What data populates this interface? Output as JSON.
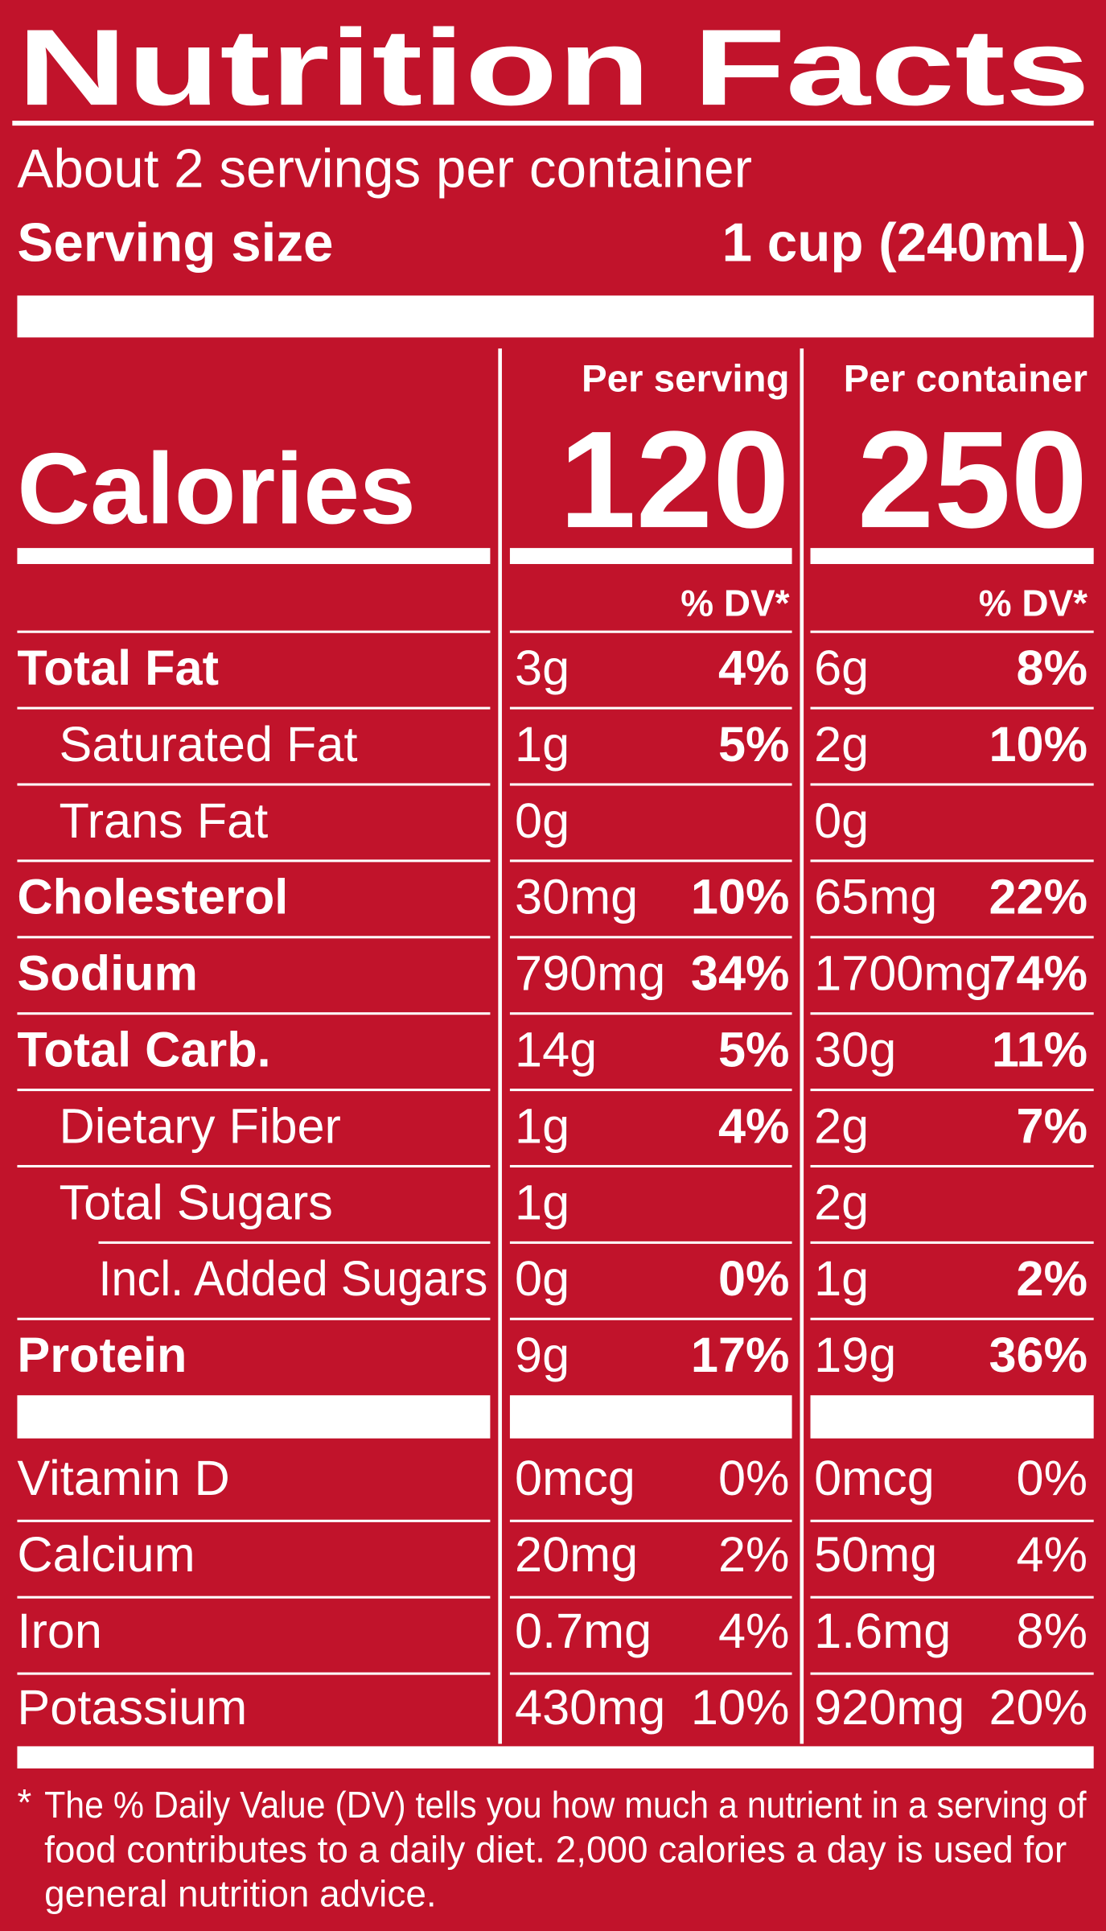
{
  "header": {
    "title": "Nutrition Facts",
    "servings": "About 2 servings per container",
    "serving_size_label": "Serving size",
    "serving_size_value": "1 cup (240mL)"
  },
  "calories": {
    "label": "Calories",
    "columns": [
      {
        "heading": "Per serving",
        "value": "120",
        "dv_heading": "% DV*"
      },
      {
        "heading": "Per container",
        "value": "250",
        "dv_heading": "% DV*"
      }
    ]
  },
  "nutrients": [
    {
      "name": "Total Fat",
      "bold": true,
      "indent": 0,
      "serving": [
        "3g",
        "4%"
      ],
      "container": [
        "6g",
        "8%"
      ]
    },
    {
      "name": "Saturated Fat",
      "bold": false,
      "indent": 1,
      "serving": [
        "1g",
        "5%"
      ],
      "container": [
        "2g",
        "10%"
      ]
    },
    {
      "name": "Trans Fat",
      "bold": false,
      "indent": 1,
      "serving": [
        "0g"
      ],
      "container": [
        "0g"
      ]
    },
    {
      "name": "Cholesterol",
      "bold": true,
      "indent": 0,
      "serving": [
        "30mg",
        "10%"
      ],
      "container": [
        "65mg",
        "22%"
      ]
    },
    {
      "name": "Sodium",
      "bold": true,
      "indent": 0,
      "serving": [
        "790mg",
        "34%"
      ],
      "container": [
        "1700mg",
        "74%"
      ]
    },
    {
      "name": "Total Carb.",
      "bold": true,
      "indent": 0,
      "serving": [
        "14g",
        "5%"
      ],
      "container": [
        "30g",
        "11%"
      ]
    },
    {
      "name": "Dietary Fiber",
      "bold": false,
      "indent": 1,
      "serving": [
        "1g",
        "4%"
      ],
      "container": [
        "2g",
        "7%"
      ]
    },
    {
      "name": "Total Sugars",
      "bold": false,
      "indent": 1,
      "serving": [
        "1g"
      ],
      "container": [
        "2g"
      ]
    },
    {
      "name": "Incl. Added Sugars",
      "bold": false,
      "indent": 2,
      "serving": [
        "0g",
        "0%"
      ],
      "container": [
        "1g",
        "2%"
      ]
    },
    {
      "name": "Protein",
      "bold": true,
      "indent": 0,
      "serving": [
        "9g",
        "17%"
      ],
      "container": [
        "19g",
        "36%"
      ]
    }
  ],
  "vitamins": [
    {
      "name": "Vitamin D",
      "serving": [
        "0mcg",
        "0%"
      ],
      "container": [
        "0mcg",
        "0%"
      ]
    },
    {
      "name": "Calcium",
      "serving": [
        "20mg",
        "2%"
      ],
      "container": [
        "50mg",
        "4%"
      ]
    },
    {
      "name": "Iron",
      "serving": [
        "0.7mg",
        "4%"
      ],
      "container": [
        "1.6mg",
        "8%"
      ]
    },
    {
      "name": "Potassium",
      "serving": [
        "430mg",
        "10%"
      ],
      "container": [
        "920mg",
        "20%"
      ]
    }
  ],
  "footnote": {
    "mark": "*",
    "lines": [
      "The % Daily Value (DV) tells you how much a nutrient in a serving of",
      "food contributes to a daily diet. 2,000 calories a day is used for",
      "general nutrition advice."
    ]
  }
}
